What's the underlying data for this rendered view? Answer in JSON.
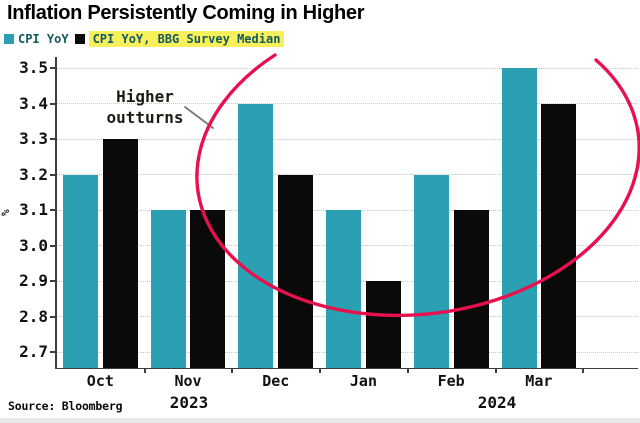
{
  "title": "Inflation Persistently Coming in Higher",
  "source": "Source: Bloomberg",
  "annotation": {
    "line1": "Higher",
    "line2": "outturns"
  },
  "colors": {
    "ellipse": "#e8114e",
    "legend_highlight": "#f8f05a",
    "legend_text": "#135a5e",
    "axis": "#3d3d3d",
    "gridline": "#c6c6c6"
  },
  "chart_data": {
    "type": "bar",
    "title": "Inflation Persistently Coming in Higher",
    "categories": [
      "Oct",
      "Nov",
      "Dec",
      "Jan",
      "Feb",
      "Mar"
    ],
    "year_labels": [
      "2023",
      "2024"
    ],
    "series": [
      {
        "name": "CPI YoY",
        "color": "#2aa0b2",
        "values": [
          3.2,
          3.1,
          3.4,
          3.1,
          3.2,
          3.5
        ]
      },
      {
        "name": "CPI YoY, BBG Survey Median",
        "color": "#0a0a0a",
        "values": [
          3.3,
          3.1,
          3.2,
          2.9,
          3.1,
          3.4
        ]
      }
    ],
    "ylabel": "%",
    "yticks": [
      3.5,
      3.4,
      3.3,
      3.2,
      3.1,
      3.0,
      2.9,
      2.8,
      2.7
    ],
    "ylim": [
      2.65,
      3.52
    ],
    "grid": "horizontal-dotted",
    "legend_position": "top-left",
    "annotation_text": "Higher outturns",
    "annotation_ellipse_months": [
      "Dec",
      "Jan",
      "Feb",
      "Mar"
    ]
  }
}
